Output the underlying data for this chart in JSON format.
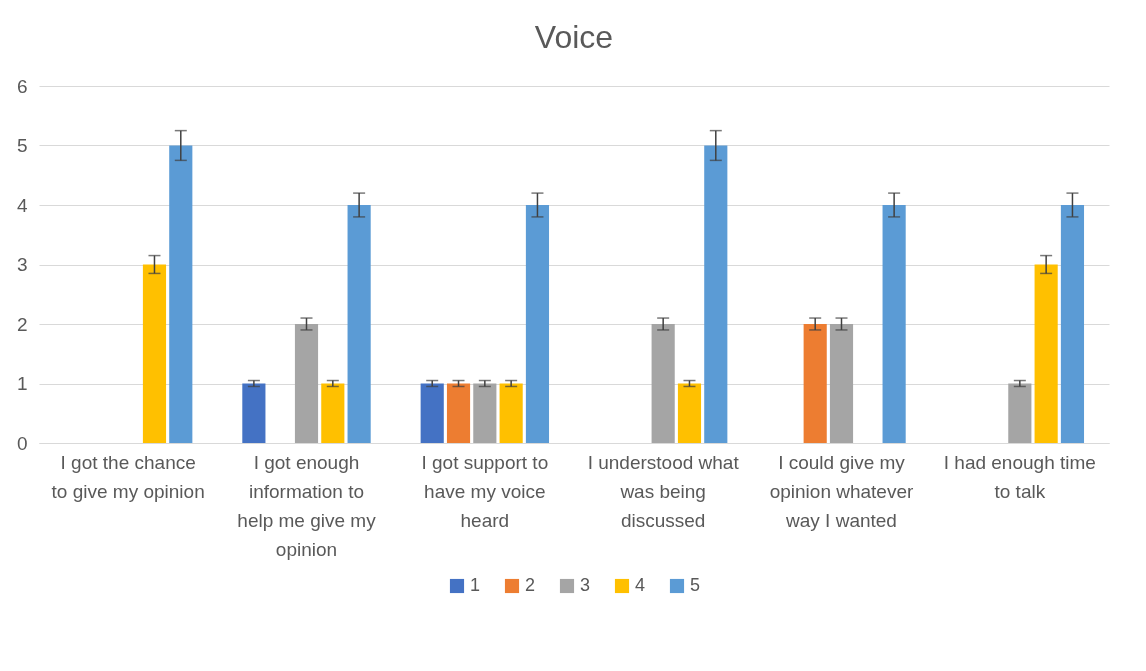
{
  "chart_data": {
    "type": "bar",
    "title": "Voice",
    "categories": [
      "I got the chance to give my opinion",
      "I got enough information to help me give my opinion",
      "I got support to have my voice heard",
      "I understood what was being discussed",
      "I could give my opinion whatever way I wanted",
      "I had enough time to talk"
    ],
    "series": [
      {
        "name": "1",
        "color": "#4472c4",
        "values": [
          0,
          1,
          1,
          0,
          0,
          0
        ],
        "errors": [
          0,
          0.05,
          0.05,
          0,
          0,
          0
        ]
      },
      {
        "name": "2",
        "color": "#ed7d31",
        "values": [
          0,
          0,
          1,
          0,
          2,
          0
        ],
        "errors": [
          0,
          0,
          0.05,
          0,
          0.1,
          0
        ]
      },
      {
        "name": "3",
        "color": "#a5a5a5",
        "values": [
          0,
          2,
          1,
          2,
          2,
          1
        ],
        "errors": [
          0,
          0.1,
          0.05,
          0.1,
          0.1,
          0.05
        ]
      },
      {
        "name": "4",
        "color": "#ffc000",
        "values": [
          3,
          1,
          1,
          1,
          0,
          3
        ],
        "errors": [
          0.15,
          0.05,
          0.05,
          0.05,
          0,
          0.15
        ]
      },
      {
        "name": "5",
        "color": "#5b9bd5",
        "values": [
          5,
          4,
          4,
          5,
          4,
          4
        ],
        "errors": [
          0.25,
          0.2,
          0.2,
          0.25,
          0.2,
          0.2
        ]
      }
    ],
    "ylim": [
      0,
      6
    ],
    "yticks": [
      0,
      1,
      2,
      3,
      4,
      5,
      6
    ],
    "grid": "y",
    "legend": "bottom"
  }
}
